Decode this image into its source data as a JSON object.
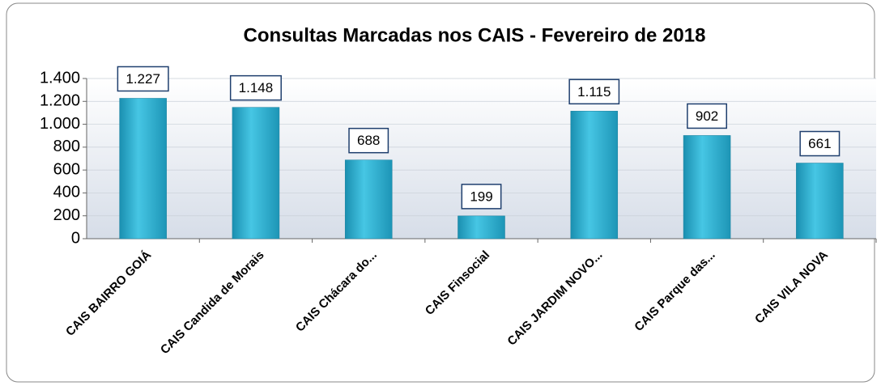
{
  "chart_data": {
    "type": "bar",
    "title": "Consultas Marcadas nos CAIS - Fevereiro de 2018",
    "categories": [
      "CAIS BAIRRO GOIÁ",
      "CAIS Candida de Morais",
      "CAIS Chácara do...",
      "CAIS Finsocial",
      "CAIS JARDIM NOVO...",
      "CAIS Parque das...",
      "CAIS VILA NOVA"
    ],
    "values": [
      1227,
      1148,
      688,
      199,
      1115,
      902,
      661
    ],
    "value_labels": [
      "1.227",
      "1.148",
      "688",
      "199",
      "1.115",
      "902",
      "661"
    ],
    "color": "#2fb3d3",
    "ylim": [
      0,
      1400
    ],
    "yticks": [
      0,
      200,
      400,
      600,
      800,
      {
        "value": 1000,
        "label": "1.000"
      },
      {
        "value": 1200,
        "label": "1.200"
      },
      {
        "value": 1400,
        "label": "1.400"
      }
    ],
    "grid": true
  }
}
